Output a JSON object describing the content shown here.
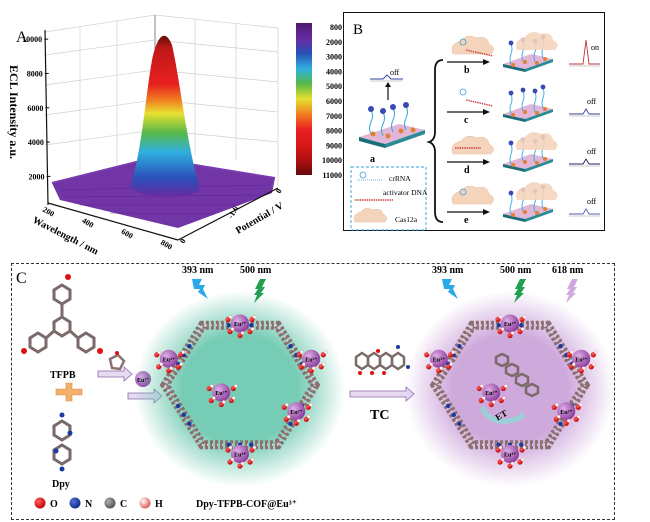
{
  "panelA": {
    "label": "A",
    "chart_data": {
      "type": "surface3d",
      "title": "",
      "zlabel": "ECL Intensity a.u.",
      "xlabel": "Wavelength / nm",
      "ylabel": "Potential / V",
      "z_ticks": [
        "2000",
        "4000",
        "6000",
        "8000",
        "10000"
      ],
      "x_ticks": [
        "200",
        "400",
        "600",
        "800"
      ],
      "y_ticks": [
        "0",
        "-1.6",
        "0"
      ],
      "zlim": [
        800,
        11000
      ],
      "peak": {
        "wavelength_nm": 618,
        "potential_V": -1.6,
        "intensity": 11000
      },
      "baseline_intensity": 1000,
      "colorbar": {
        "ticks": [
          "800",
          "2000",
          "3000",
          "4000",
          "5000",
          "6000",
          "7000",
          "8000",
          "9000",
          "10000",
          "11000"
        ],
        "colors": [
          "#4b1a6e",
          "#6a2aa0",
          "#2a50b8",
          "#30b0e0",
          "#58b848",
          "#e8e030",
          "#f08020",
          "#e82020",
          "#d81818",
          "#b01010",
          "#6a0a0a"
        ]
      }
    }
  },
  "panelB": {
    "label": "B",
    "state_a": {
      "letter": "a",
      "signal": "off"
    },
    "legend": {
      "crRNA": "crRNA",
      "activator": "activator DNA",
      "cas": "Cas12a"
    },
    "rows": [
      {
        "letter": "b",
        "signal": "on",
        "color": "#c03030"
      },
      {
        "letter": "c",
        "signal": "off",
        "color": "#3040a0"
      },
      {
        "letter": "d",
        "signal": "off",
        "color": "#202060"
      },
      {
        "letter": "e",
        "signal": "off",
        "color": "#5060c0"
      }
    ]
  },
  "panelC": {
    "label": "C",
    "monomer1": "TFPB",
    "monomer2": "Dpy",
    "ion": "Eu³⁺",
    "reagent": "TC",
    "et_label": "ET",
    "cof1_light": [
      "393 nm",
      "500 nm"
    ],
    "cof2_light": [
      "393 nm",
      "500 nm",
      "618 nm"
    ],
    "legend": [
      {
        "symbol": "O",
        "color": "#e01010"
      },
      {
        "symbol": "N",
        "color": "#1a3aa0"
      },
      {
        "symbol": "C",
        "color": "#707070"
      },
      {
        "symbol": "H",
        "color": "#f4d0d0"
      }
    ],
    "product_name": "Dpy-TFPB-COF@Eu³⁺",
    "colors": {
      "glow1": "#5fc3a8",
      "glow2": "#c69ad6",
      "bolt_blue": "#2aa8e8",
      "bolt_green": "#20a050",
      "bolt_violet": "#d0a8e0",
      "eu": "#a050b0"
    }
  }
}
